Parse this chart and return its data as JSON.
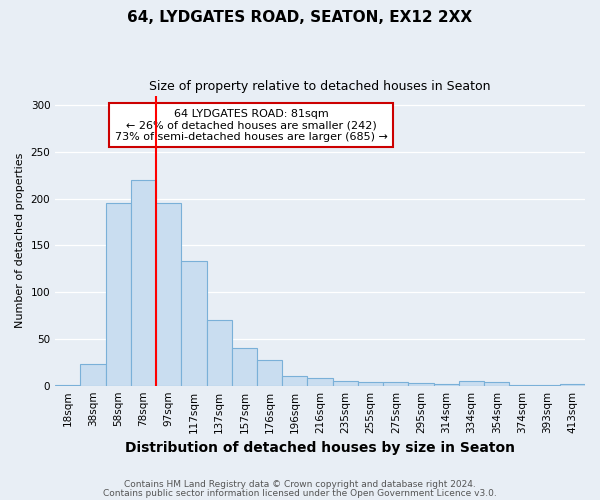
{
  "title1": "64, LYDGATES ROAD, SEATON, EX12 2XX",
  "title2": "Size of property relative to detached houses in Seaton",
  "xlabel": "Distribution of detached houses by size in Seaton",
  "ylabel": "Number of detached properties",
  "footnote1": "Contains HM Land Registry data © Crown copyright and database right 2024.",
  "footnote2": "Contains public sector information licensed under the Open Government Licence v3.0.",
  "bar_labels": [
    "18sqm",
    "38sqm",
    "58sqm",
    "78sqm",
    "97sqm",
    "117sqm",
    "137sqm",
    "157sqm",
    "176sqm",
    "196sqm",
    "216sqm",
    "235sqm",
    "255sqm",
    "275sqm",
    "295sqm",
    "314sqm",
    "334sqm",
    "354sqm",
    "374sqm",
    "393sqm",
    "413sqm"
  ],
  "bar_values": [
    1,
    23,
    195,
    220,
    195,
    133,
    70,
    40,
    27,
    10,
    8,
    5,
    4,
    4,
    3,
    2,
    5,
    4,
    1,
    1,
    2
  ],
  "bar_color": "#c9ddf0",
  "bar_edge_color": "#7ab0d8",
  "red_line_x": 3.5,
  "annotation_line1": "64 LYDGATES ROAD: 81sqm",
  "annotation_line2": "← 26% of detached houses are smaller (242)",
  "annotation_line3": "73% of semi-detached houses are larger (685) →",
  "annotation_box_facecolor": "#ffffff",
  "annotation_box_edgecolor": "#cc0000",
  "ylim": [
    0,
    310
  ],
  "yticks": [
    0,
    50,
    100,
    150,
    200,
    250,
    300
  ],
  "fig_bgcolor": "#e8eef5",
  "plot_bgcolor": "#e8eef5",
  "grid_color": "#ffffff",
  "title1_fontsize": 11,
  "title2_fontsize": 9,
  "xlabel_fontsize": 10,
  "ylabel_fontsize": 8,
  "footnote_fontsize": 6.5,
  "tick_fontsize": 7.5
}
